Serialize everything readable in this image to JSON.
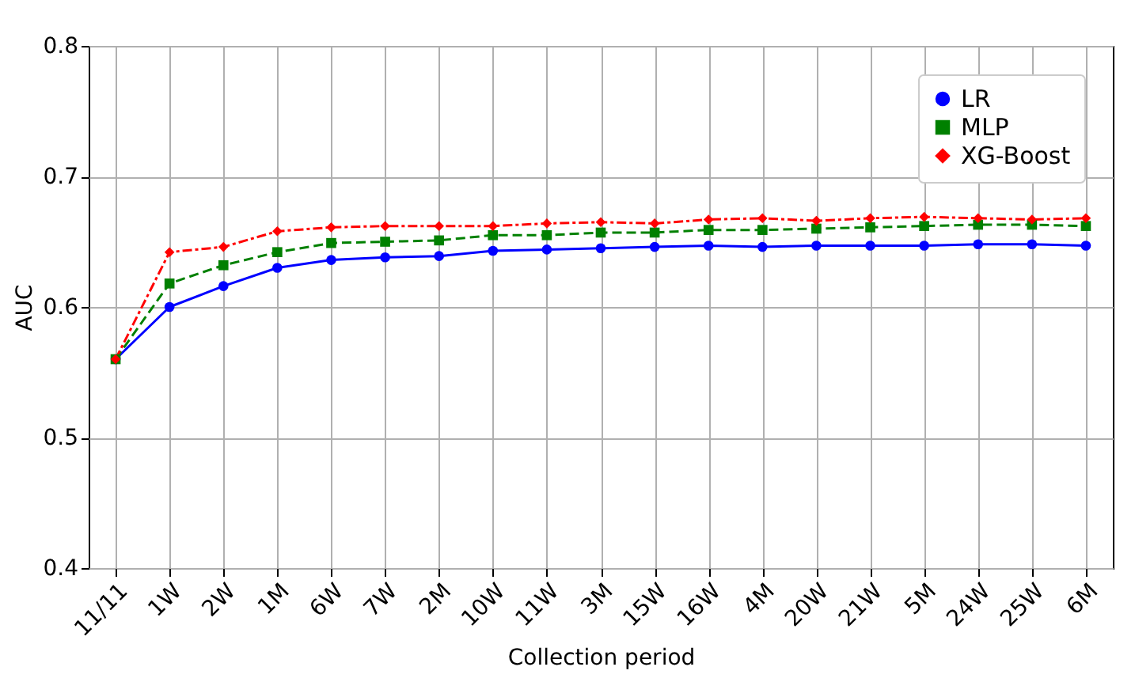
{
  "chart_data": {
    "type": "line",
    "xlabel": "Collection period",
    "ylabel": "AUC",
    "categories": [
      "11/11",
      "1W",
      "2W",
      "1M",
      "6W",
      "7W",
      "2M",
      "10W",
      "11W",
      "3M",
      "15W",
      "16W",
      "4M",
      "20W",
      "21W",
      "5M",
      "24W",
      "25W",
      "6M"
    ],
    "series": [
      {
        "name": "LR",
        "color": "#0000ff",
        "marker": "circle",
        "line_style": "solid",
        "values": [
          0.56,
          0.6,
          0.616,
          0.63,
          0.636,
          0.638,
          0.639,
          0.643,
          0.644,
          0.645,
          0.646,
          0.647,
          0.646,
          0.647,
          0.647,
          0.647,
          0.648,
          0.648,
          0.647
        ]
      },
      {
        "name": "MLP",
        "color": "#008000",
        "marker": "square",
        "line_style": "dashed",
        "values": [
          0.56,
          0.618,
          0.632,
          0.642,
          0.649,
          0.65,
          0.651,
          0.655,
          0.655,
          0.657,
          0.657,
          0.659,
          0.659,
          0.66,
          0.661,
          0.662,
          0.663,
          0.663,
          0.662
        ]
      },
      {
        "name": "XG-Boost",
        "color": "#ff0000",
        "marker": "diamond",
        "line_style": "dashdot",
        "values": [
          0.56,
          0.642,
          0.646,
          0.658,
          0.661,
          0.662,
          0.662,
          0.662,
          0.664,
          0.665,
          0.664,
          0.667,
          0.668,
          0.666,
          0.668,
          0.669,
          0.668,
          0.667,
          0.668
        ]
      }
    ],
    "ylim": [
      0.4,
      0.8
    ],
    "yticks": [
      0.4,
      0.5,
      0.6,
      0.7,
      0.8
    ],
    "grid": true,
    "legend": "top right"
  }
}
